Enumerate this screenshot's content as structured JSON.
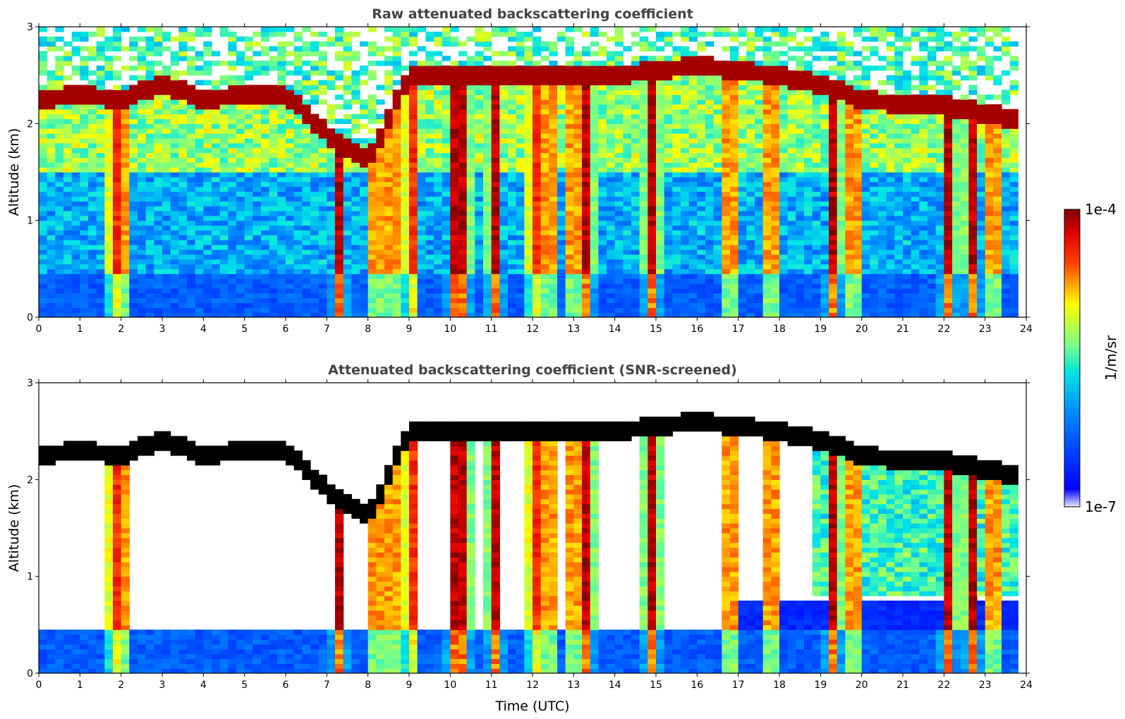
{
  "chart_data": [
    {
      "type": "heatmap",
      "title": "Raw attenuated backscattering coefficient",
      "xlabel": "",
      "ylabel": "Altitude (km)",
      "xlim": [
        0,
        24
      ],
      "ylim": [
        0,
        3
      ],
      "x_ticks": [
        "0",
        "1",
        "2",
        "3",
        "4",
        "5",
        "6",
        "7",
        "8",
        "9",
        "10",
        "11",
        "12",
        "13",
        "14",
        "15",
        "16",
        "17",
        "18",
        "19",
        "20",
        "21",
        "22",
        "23",
        "24"
      ],
      "y_ticks": [
        "0",
        "1",
        "2",
        "3"
      ],
      "screened": false,
      "cloud_top_km": {
        "time_utc": [
          0,
          1,
          2,
          3,
          4,
          5,
          6,
          7,
          8,
          9,
          10,
          11,
          12,
          13,
          14,
          15,
          16,
          17,
          18,
          19,
          20,
          21,
          22,
          23,
          23.8
        ],
        "altitude": [
          2.25,
          2.3,
          2.25,
          2.4,
          2.25,
          2.3,
          2.3,
          1.9,
          1.6,
          2.5,
          2.5,
          2.5,
          2.5,
          2.5,
          2.5,
          2.55,
          2.6,
          2.55,
          2.5,
          2.4,
          2.25,
          2.2,
          2.2,
          2.1,
          2.05
        ]
      }
    },
    {
      "type": "heatmap",
      "title": "Attenuated backscattering coefficient (SNR-screened)",
      "xlabel": "Time (UTC)",
      "ylabel": "Altitude (km)",
      "xlim": [
        0,
        24
      ],
      "ylim": [
        0,
        3
      ],
      "x_ticks": [
        "0",
        "1",
        "2",
        "3",
        "4",
        "5",
        "6",
        "7",
        "8",
        "9",
        "10",
        "11",
        "12",
        "13",
        "14",
        "15",
        "16",
        "17",
        "18",
        "19",
        "20",
        "21",
        "22",
        "23",
        "24"
      ],
      "y_ticks": [
        "0",
        "1",
        "2",
        "3"
      ],
      "screened": true
    }
  ],
  "colorbar": {
    "label": "1/m/sr",
    "max_label": "1e-4",
    "min_label": "1e-7",
    "colormap": "jet",
    "colors": [
      "#ffffff",
      "#0000ff",
      "#00bfff",
      "#7fff7f",
      "#ffff00",
      "#ff4500",
      "#8b0000"
    ]
  }
}
